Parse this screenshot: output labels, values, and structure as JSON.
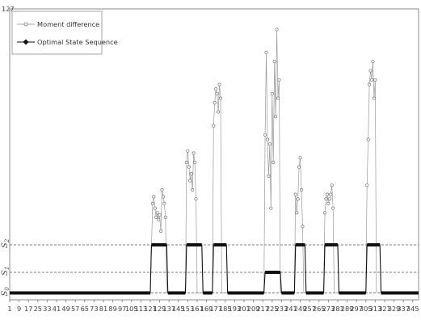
{
  "chart_data": {
    "type": "line",
    "ymax_label": "127",
    "xlim": [
      1,
      350
    ],
    "ylim": [
      0,
      127
    ],
    "x_ticks": [
      1,
      9,
      17,
      25,
      33,
      41,
      49,
      57,
      65,
      73,
      81,
      89,
      97,
      105,
      113,
      121,
      129,
      137,
      145,
      153,
      161,
      169,
      177,
      185,
      193,
      201,
      209,
      217,
      225,
      233,
      241,
      249,
      257,
      265,
      273,
      281,
      289,
      297,
      305,
      313,
      321,
      329,
      337,
      345
    ],
    "state_levels": [
      {
        "label": "S",
        "sub": "0",
        "value": 3
      },
      {
        "label": "S",
        "sub": "1",
        "value": 12
      },
      {
        "label": "S",
        "sub": "2",
        "value": 24
      }
    ],
    "legend": {
      "position": "top-left",
      "entries": [
        "Moment difference",
        "Optimal State Sequence"
      ]
    },
    "series": [
      {
        "name": "Moment difference",
        "style": "open-circle",
        "color": "#9a9a9a",
        "points": [
          [
            121,
            3
          ],
          [
            123,
            42
          ],
          [
            124,
            45
          ],
          [
            125,
            40
          ],
          [
            126,
            36
          ],
          [
            127,
            38
          ],
          [
            128,
            35
          ],
          [
            129,
            37
          ],
          [
            130,
            30
          ],
          [
            131,
            48
          ],
          [
            132,
            45
          ],
          [
            133,
            42
          ],
          [
            134,
            36
          ],
          [
            135,
            3
          ],
          [
            151,
            3
          ],
          [
            152,
            60
          ],
          [
            153,
            65
          ],
          [
            154,
            58
          ],
          [
            155,
            52
          ],
          [
            156,
            55
          ],
          [
            157,
            48
          ],
          [
            158,
            64
          ],
          [
            159,
            60
          ],
          [
            160,
            44
          ],
          [
            161,
            3
          ],
          [
            174,
            3
          ],
          [
            175,
            76
          ],
          [
            176,
            86
          ],
          [
            177,
            92
          ],
          [
            178,
            90
          ],
          [
            179,
            82
          ],
          [
            180,
            94
          ],
          [
            181,
            88
          ],
          [
            182,
            3
          ],
          [
            218,
            3
          ],
          [
            219,
            72
          ],
          [
            220,
            108
          ],
          [
            221,
            70
          ],
          [
            222,
            54
          ],
          [
            223,
            68
          ],
          [
            224,
            40
          ],
          [
            225,
            90
          ],
          [
            226,
            60
          ],
          [
            227,
            104
          ],
          [
            228,
            80
          ],
          [
            229,
            118
          ],
          [
            230,
            88
          ],
          [
            231,
            96
          ],
          [
            232,
            3
          ],
          [
            244,
            3
          ],
          [
            245,
            46
          ],
          [
            246,
            38
          ],
          [
            247,
            44
          ],
          [
            248,
            58
          ],
          [
            249,
            62
          ],
          [
            250,
            48
          ],
          [
            251,
            32
          ],
          [
            252,
            3
          ],
          [
            269,
            3
          ],
          [
            270,
            38
          ],
          [
            271,
            44
          ],
          [
            272,
            46
          ],
          [
            273,
            42
          ],
          [
            274,
            44
          ],
          [
            275,
            46
          ],
          [
            276,
            50
          ],
          [
            277,
            40
          ],
          [
            278,
            3
          ],
          [
            305,
            3
          ],
          [
            306,
            50
          ],
          [
            307,
            70
          ],
          [
            308,
            94
          ],
          [
            309,
            100
          ],
          [
            310,
            96
          ],
          [
            311,
            104
          ],
          [
            312,
            88
          ],
          [
            313,
            96
          ],
          [
            314,
            3
          ]
        ]
      },
      {
        "name": "Optimal State Sequence",
        "style": "filled-diamond",
        "color": "#111111",
        "points": [
          [
            1,
            3
          ],
          [
            121,
            3
          ],
          [
            122,
            24
          ],
          [
            135,
            24
          ],
          [
            136,
            3
          ],
          [
            151,
            3
          ],
          [
            152,
            24
          ],
          [
            165,
            24
          ],
          [
            166,
            3
          ],
          [
            174,
            3
          ],
          [
            175,
            24
          ],
          [
            186,
            24
          ],
          [
            187,
            3
          ],
          [
            218,
            3
          ],
          [
            219,
            12
          ],
          [
            232,
            12
          ],
          [
            233,
            3
          ],
          [
            244,
            3
          ],
          [
            245,
            24
          ],
          [
            253,
            24
          ],
          [
            254,
            3
          ],
          [
            269,
            3
          ],
          [
            270,
            24
          ],
          [
            281,
            24
          ],
          [
            282,
            3
          ],
          [
            305,
            3
          ],
          [
            306,
            24
          ],
          [
            317,
            24
          ],
          [
            318,
            3
          ],
          [
            350,
            3
          ]
        ]
      }
    ]
  }
}
